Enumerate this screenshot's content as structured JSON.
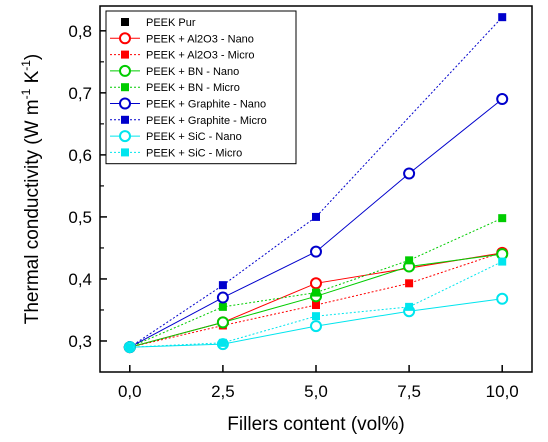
{
  "chart_data": {
    "type": "line",
    "xlabel": "Fillers content (vol%)",
    "ylabel": "Thermal conductivity (W m-1 K-1)",
    "ylabel_parts": [
      "Thermal conductivity (W m",
      "-1",
      " K",
      "-1",
      ")"
    ],
    "xlim": [
      -0.8,
      10.8
    ],
    "ylim": [
      0.25,
      0.84
    ],
    "x_ticks": [
      0,
      2.5,
      5,
      7.5,
      10
    ],
    "x_tick_labels": [
      "0,0",
      "2,5",
      "5,0",
      "7,5",
      "10,0"
    ],
    "y_ticks": [
      0.3,
      0.4,
      0.5,
      0.6,
      0.7,
      0.8
    ],
    "y_tick_labels": [
      "0,3",
      "0,4",
      "0,5",
      "0,6",
      "0,7",
      "0,8"
    ],
    "legend_position": "top-left",
    "grid": false,
    "series": [
      {
        "name": "PEEK Pur",
        "color": "#000000",
        "marker": "square-filled",
        "line": "none",
        "x": [
          0
        ],
        "y": [
          0.29
        ]
      },
      {
        "name": "PEEK + Al2O3 - Nano",
        "color": "#ff0000",
        "marker": "circle-open",
        "line": "solid",
        "x": [
          0,
          2.5,
          5,
          10
        ],
        "y": [
          0.29,
          0.33,
          0.393,
          0.442
        ]
      },
      {
        "name": "PEEK + Al2O3 - Micro",
        "color": "#ff0000",
        "marker": "square-filled",
        "line": "dotted",
        "x": [
          0,
          2.5,
          5,
          7.5,
          10
        ],
        "y": [
          0.29,
          0.325,
          0.358,
          0.393,
          0.443
        ]
      },
      {
        "name": "PEEK + BN - Nano",
        "color": "#00cc00",
        "marker": "circle-open",
        "line": "solid",
        "x": [
          0,
          2.5,
          5,
          7.5,
          10
        ],
        "y": [
          0.29,
          0.33,
          0.372,
          0.42,
          0.44
        ]
      },
      {
        "name": "PEEK + BN - Micro",
        "color": "#00cc00",
        "marker": "square-filled",
        "line": "dotted",
        "x": [
          0,
          2.5,
          5,
          7.5,
          10
        ],
        "y": [
          0.29,
          0.355,
          0.378,
          0.43,
          0.498
        ]
      },
      {
        "name": "PEEK + Graphite - Nano",
        "color": "#0000cc",
        "marker": "circle-open",
        "line": "solid",
        "x": [
          0,
          2.5,
          5,
          7.5,
          10
        ],
        "y": [
          0.29,
          0.37,
          0.444,
          0.57,
          0.69
        ]
      },
      {
        "name": "PEEK + Graphite - Micro",
        "color": "#0000cc",
        "marker": "square-filled",
        "line": "dotted",
        "x": [
          0,
          2.5,
          5,
          10
        ],
        "y": [
          0.29,
          0.39,
          0.5,
          0.822
        ]
      },
      {
        "name": "PEEK + SiC - Nano",
        "color": "#00e5ee",
        "marker": "circle-open",
        "line": "solid",
        "x": [
          0,
          2.5,
          5,
          7.5,
          10
        ],
        "y": [
          0.29,
          0.295,
          0.324,
          0.348,
          0.368
        ]
      },
      {
        "name": "PEEK + SiC - Micro",
        "color": "#00e5ee",
        "marker": "square-filled",
        "line": "dotted",
        "x": [
          0,
          2.5,
          5,
          7.5,
          10
        ],
        "y": [
          0.29,
          0.297,
          0.34,
          0.355,
          0.428
        ]
      }
    ]
  }
}
